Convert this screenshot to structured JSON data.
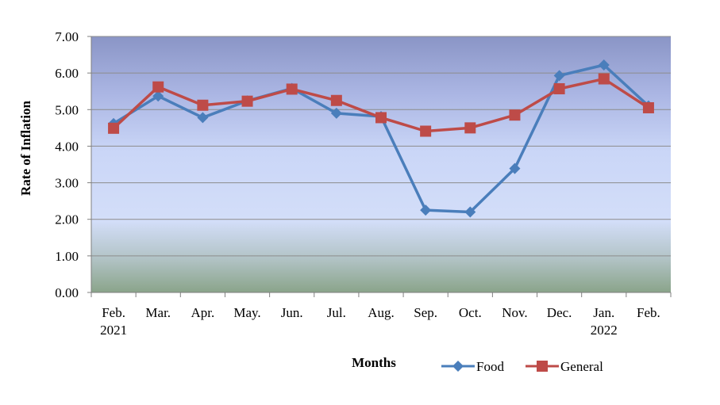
{
  "chart_data": {
    "type": "line",
    "categories": [
      [
        "Feb.",
        "2021"
      ],
      [
        "Mar."
      ],
      [
        "Apr."
      ],
      [
        "May."
      ],
      [
        "Jun."
      ],
      [
        "Jul."
      ],
      [
        "Aug."
      ],
      [
        "Sep."
      ],
      [
        "Oct."
      ],
      [
        "Nov."
      ],
      [
        "Dec."
      ],
      [
        "Jan.",
        "2022"
      ],
      [
        "Feb."
      ]
    ],
    "series": [
      {
        "name": "Food",
        "color": "#4a7ebb",
        "marker": "diamond",
        "values": [
          4.62,
          5.37,
          4.78,
          5.24,
          5.58,
          4.9,
          4.81,
          2.25,
          2.2,
          3.39,
          5.93,
          6.22,
          5.1
        ]
      },
      {
        "name": "General",
        "color": "#be4b48",
        "marker": "square",
        "values": [
          4.49,
          5.62,
          5.12,
          5.23,
          5.56,
          5.25,
          4.78,
          4.41,
          4.5,
          4.85,
          5.57,
          5.84,
          5.05
        ]
      }
    ],
    "ylim": [
      0,
      7
    ],
    "yticks": [
      "0.00",
      "1.00",
      "2.00",
      "3.00",
      "4.00",
      "5.00",
      "6.00",
      "7.00"
    ],
    "xlabel": "Months",
    "ylabel": "Rate of Inflation",
    "grid": true,
    "legend": "bottom"
  }
}
